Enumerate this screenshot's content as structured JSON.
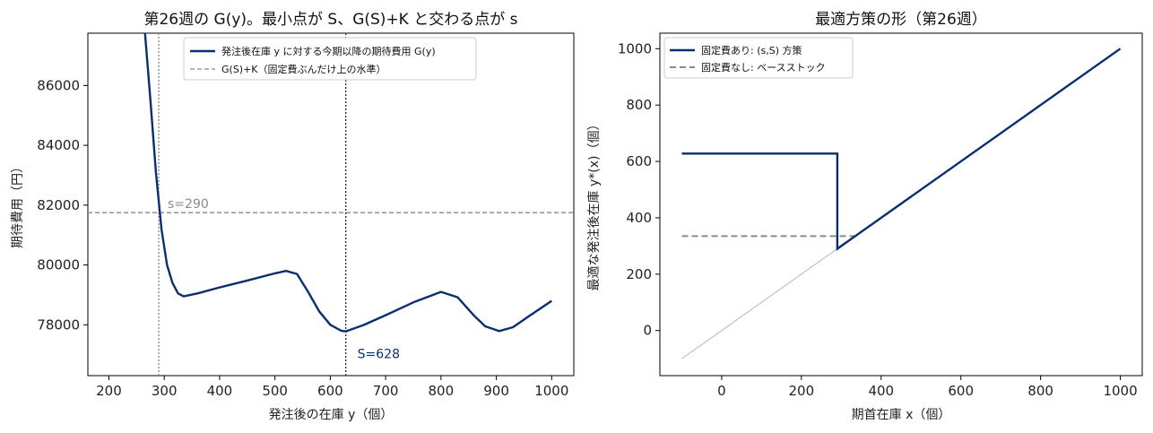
{
  "colors": {
    "navy": "#0b2f6e",
    "gray": "#8a8a8a",
    "diag": "#b8b8b8",
    "frame": "#000000"
  },
  "chart_data": [
    {
      "type": "line",
      "title": "第26週の G(y)。最小点が S、G(S)+K と交わる点が s",
      "xlabel": "発注後の在庫 y（個）",
      "ylabel": "期待費用（円）",
      "xlim": [
        162,
        1040
      ],
      "ylim": [
        76300,
        87750
      ],
      "xticks": [
        200,
        300,
        400,
        500,
        600,
        700,
        800,
        900,
        1000
      ],
      "yticks": [
        78000,
        80000,
        82000,
        84000,
        86000
      ],
      "grid": false,
      "legend_position": "top-center",
      "series": [
        {
          "name": "発注後在庫 y に対する今期以降の期待費用 G(y)",
          "x": [
            265,
            275,
            285,
            295,
            305,
            315,
            325,
            335,
            360,
            400,
            450,
            500,
            520,
            540,
            560,
            580,
            600,
            620,
            628,
            660,
            700,
            750,
            800,
            830,
            860,
            880,
            905,
            930,
            960,
            1000
          ],
          "y": [
            87800,
            85500,
            83100,
            81200,
            80000,
            79400,
            79050,
            78950,
            79050,
            79250,
            79480,
            79720,
            79800,
            79700,
            79100,
            78450,
            78000,
            77800,
            77780,
            77990,
            78320,
            78750,
            79100,
            78920,
            78300,
            77950,
            77790,
            77920,
            78300,
            78800
          ]
        },
        {
          "name": "G(S)+K（固定費ぶんだけ上の水準）",
          "y_constant": 81750
        }
      ],
      "vlines": [
        290,
        628
      ],
      "annotations": [
        {
          "text": "s=290",
          "x": 290,
          "y": 82000
        },
        {
          "text": "S=628",
          "x": 628,
          "y": 77000
        }
      ]
    },
    {
      "type": "line",
      "title": "最適方策の形（第26週）",
      "xlabel": "期首在庫 x（個）",
      "ylabel": "最適な発注後在庫 y*(x)（個）",
      "xlim": [
        -155,
        1055
      ],
      "ylim": [
        -160,
        1055
      ],
      "xticks": [
        0,
        200,
        400,
        600,
        800,
        1000
      ],
      "yticks": [
        0,
        200,
        400,
        600,
        800,
        1000
      ],
      "grid": false,
      "legend_position": "top-left",
      "series": [
        {
          "name": "固定費あり: (s,S) 方策",
          "x": [
            -100,
            290,
            290,
            1000
          ],
          "y": [
            628,
            628,
            290,
            1000
          ]
        },
        {
          "name": "固定費なし: ベースストック",
          "x": [
            -100,
            335,
            1000
          ],
          "y": [
            335,
            335,
            1000
          ]
        },
        {
          "name": "",
          "x": [
            -100,
            1000
          ],
          "y": [
            -100,
            1000
          ]
        }
      ]
    }
  ]
}
